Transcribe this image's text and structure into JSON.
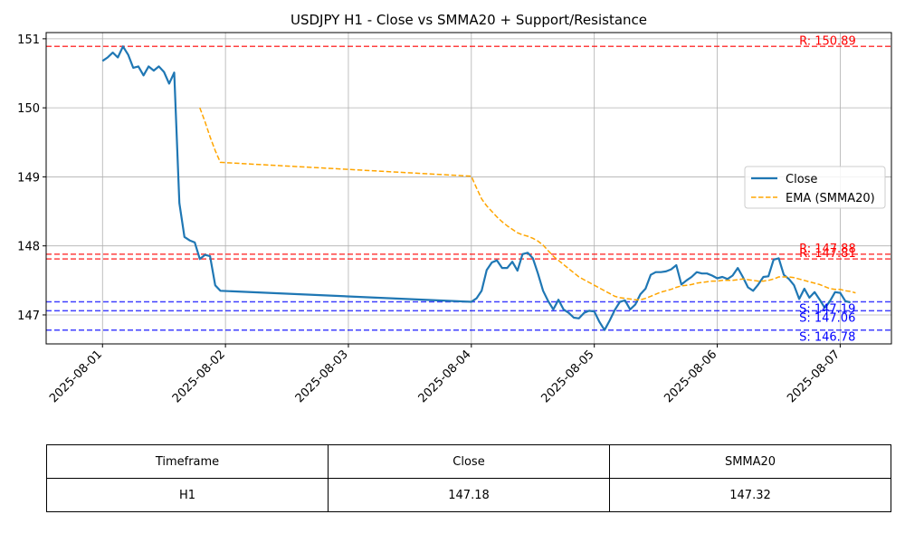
{
  "chart_data": {
    "type": "line",
    "title": "USDJPY H1 - Close vs SMMA20 + Support/Resistance",
    "xlabel": "",
    "ylabel": "",
    "x_ticks": [
      "2025-08-01",
      "2025-08-02",
      "2025-08-03",
      "2025-08-04",
      "2025-08-05",
      "2025-08-06",
      "2025-08-07"
    ],
    "y_ticks": [
      147,
      148,
      149,
      150,
      151
    ],
    "xlim": [
      "2025-07-31 13:00",
      "2025-08-07 10:00"
    ],
    "ylim": [
      146.58,
      151.09
    ],
    "grid": true,
    "legend_position": "center-right",
    "series": [
      {
        "name": "Close",
        "color": "#1f77b4",
        "style": "solid",
        "points": [
          [
            "2025-08-01 00:00",
            150.68
          ],
          [
            "2025-08-01 01:00",
            150.73
          ],
          [
            "2025-08-01 02:00",
            150.8
          ],
          [
            "2025-08-01 03:00",
            150.73
          ],
          [
            "2025-08-01 04:00",
            150.89
          ],
          [
            "2025-08-01 05:00",
            150.77
          ],
          [
            "2025-08-01 06:00",
            150.58
          ],
          [
            "2025-08-01 07:00",
            150.6
          ],
          [
            "2025-08-01 08:00",
            150.47
          ],
          [
            "2025-08-01 09:00",
            150.6
          ],
          [
            "2025-08-01 10:00",
            150.54
          ],
          [
            "2025-08-01 11:00",
            150.6
          ],
          [
            "2025-08-01 12:00",
            150.52
          ],
          [
            "2025-08-01 13:00",
            150.35
          ],
          [
            "2025-08-01 14:00",
            150.51
          ],
          [
            "2025-08-01 15:00",
            148.62
          ],
          [
            "2025-08-01 16:00",
            148.13
          ],
          [
            "2025-08-01 17:00",
            148.08
          ],
          [
            "2025-08-01 18:00",
            148.05
          ],
          [
            "2025-08-01 19:00",
            147.81
          ],
          [
            "2025-08-01 20:00",
            147.87
          ],
          [
            "2025-08-01 21:00",
            147.85
          ],
          [
            "2025-08-01 22:00",
            147.43
          ],
          [
            "2025-08-01 23:00",
            147.35
          ],
          [
            "2025-08-04 00:00",
            147.19
          ],
          [
            "2025-08-04 01:00",
            147.24
          ],
          [
            "2025-08-04 02:00",
            147.35
          ],
          [
            "2025-08-04 03:00",
            147.65
          ],
          [
            "2025-08-04 04:00",
            147.76
          ],
          [
            "2025-08-04 05:00",
            147.79
          ],
          [
            "2025-08-04 06:00",
            147.68
          ],
          [
            "2025-08-04 07:00",
            147.68
          ],
          [
            "2025-08-04 08:00",
            147.77
          ],
          [
            "2025-08-04 09:00",
            147.64
          ],
          [
            "2025-08-04 10:00",
            147.88
          ],
          [
            "2025-08-04 11:00",
            147.9
          ],
          [
            "2025-08-04 12:00",
            147.82
          ],
          [
            "2025-08-04 13:00",
            147.6
          ],
          [
            "2025-08-04 14:00",
            147.35
          ],
          [
            "2025-08-04 15:00",
            147.2
          ],
          [
            "2025-08-04 16:00",
            147.08
          ],
          [
            "2025-08-04 17:00",
            147.22
          ],
          [
            "2025-08-04 18:00",
            147.08
          ],
          [
            "2025-08-04 19:00",
            147.03
          ],
          [
            "2025-08-04 20:00",
            146.96
          ],
          [
            "2025-08-04 21:00",
            146.95
          ],
          [
            "2025-08-04 22:00",
            147.03
          ],
          [
            "2025-08-04 23:00",
            147.06
          ],
          [
            "2025-08-05 00:00",
            147.05
          ],
          [
            "2025-08-05 01:00",
            146.9
          ],
          [
            "2025-08-05 02:00",
            146.78
          ],
          [
            "2025-08-05 03:00",
            146.92
          ],
          [
            "2025-08-05 04:00",
            147.07
          ],
          [
            "2025-08-05 05:00",
            147.19
          ],
          [
            "2025-08-05 06:00",
            147.21
          ],
          [
            "2025-08-05 07:00",
            147.08
          ],
          [
            "2025-08-05 08:00",
            147.15
          ],
          [
            "2025-08-05 09:00",
            147.3
          ],
          [
            "2025-08-05 10:00",
            147.38
          ],
          [
            "2025-08-05 11:00",
            147.58
          ],
          [
            "2025-08-05 12:00",
            147.62
          ],
          [
            "2025-08-05 13:00",
            147.62
          ],
          [
            "2025-08-05 14:00",
            147.63
          ],
          [
            "2025-08-05 15:00",
            147.66
          ],
          [
            "2025-08-05 16:00",
            147.72
          ],
          [
            "2025-08-05 17:00",
            147.44
          ],
          [
            "2025-08-05 18:00",
            147.5
          ],
          [
            "2025-08-05 19:00",
            147.55
          ],
          [
            "2025-08-05 20:00",
            147.62
          ],
          [
            "2025-08-05 21:00",
            147.6
          ],
          [
            "2025-08-05 22:00",
            147.6
          ],
          [
            "2025-08-05 23:00",
            147.57
          ],
          [
            "2025-08-06 00:00",
            147.53
          ],
          [
            "2025-08-06 01:00",
            147.55
          ],
          [
            "2025-08-06 02:00",
            147.52
          ],
          [
            "2025-08-06 03:00",
            147.57
          ],
          [
            "2025-08-06 04:00",
            147.68
          ],
          [
            "2025-08-06 05:00",
            147.55
          ],
          [
            "2025-08-06 06:00",
            147.4
          ],
          [
            "2025-08-06 07:00",
            147.35
          ],
          [
            "2025-08-06 08:00",
            147.44
          ],
          [
            "2025-08-06 09:00",
            147.55
          ],
          [
            "2025-08-06 10:00",
            147.56
          ],
          [
            "2025-08-06 11:00",
            147.8
          ],
          [
            "2025-08-06 12:00",
            147.82
          ],
          [
            "2025-08-06 13:00",
            147.58
          ],
          [
            "2025-08-06 14:00",
            147.52
          ],
          [
            "2025-08-06 15:00",
            147.43
          ],
          [
            "2025-08-06 16:00",
            147.23
          ],
          [
            "2025-08-06 17:00",
            147.38
          ],
          [
            "2025-08-06 18:00",
            147.25
          ],
          [
            "2025-08-06 19:00",
            147.33
          ],
          [
            "2025-08-06 20:00",
            147.22
          ],
          [
            "2025-08-06 21:00",
            147.1
          ],
          [
            "2025-08-06 22:00",
            147.2
          ],
          [
            "2025-08-06 23:00",
            147.33
          ],
          [
            "2025-08-07 00:00",
            147.32
          ],
          [
            "2025-08-07 01:00",
            147.2
          ],
          [
            "2025-08-07 02:00",
            147.18
          ]
        ]
      },
      {
        "name": "EMA (SMMA20)",
        "color": "#ffa500",
        "style": "dashed",
        "points": [
          [
            "2025-08-01 19:00",
            150.0
          ],
          [
            "2025-08-01 20:00",
            149.8
          ],
          [
            "2025-08-01 21:00",
            149.58
          ],
          [
            "2025-08-01 22:00",
            149.38
          ],
          [
            "2025-08-01 23:00",
            149.21
          ],
          [
            "2025-08-04 00:00",
            149.01
          ],
          [
            "2025-08-04 01:00",
            148.84
          ],
          [
            "2025-08-04 02:00",
            148.68
          ],
          [
            "2025-08-04 03:00",
            148.58
          ],
          [
            "2025-08-04 04:00",
            148.5
          ],
          [
            "2025-08-04 05:00",
            148.42
          ],
          [
            "2025-08-04 06:00",
            148.35
          ],
          [
            "2025-08-04 07:00",
            148.29
          ],
          [
            "2025-08-04 08:00",
            148.24
          ],
          [
            "2025-08-04 09:00",
            148.19
          ],
          [
            "2025-08-04 10:00",
            148.16
          ],
          [
            "2025-08-04 11:00",
            148.14
          ],
          [
            "2025-08-04 12:00",
            148.11
          ],
          [
            "2025-08-04 13:00",
            148.07
          ],
          [
            "2025-08-04 14:00",
            148.01
          ],
          [
            "2025-08-04 15:00",
            147.93
          ],
          [
            "2025-08-04 16:00",
            147.85
          ],
          [
            "2025-08-04 17:00",
            147.79
          ],
          [
            "2025-08-04 18:00",
            147.73
          ],
          [
            "2025-08-04 19:00",
            147.67
          ],
          [
            "2025-08-04 20:00",
            147.61
          ],
          [
            "2025-08-04 21:00",
            147.55
          ],
          [
            "2025-08-04 22:00",
            147.51
          ],
          [
            "2025-08-04 23:00",
            147.47
          ],
          [
            "2025-08-05 00:00",
            147.43
          ],
          [
            "2025-08-05 01:00",
            147.39
          ],
          [
            "2025-08-05 02:00",
            147.35
          ],
          [
            "2025-08-05 03:00",
            147.31
          ],
          [
            "2025-08-05 04:00",
            147.27
          ],
          [
            "2025-08-05 05:00",
            147.25
          ],
          [
            "2025-08-05 06:00",
            147.24
          ],
          [
            "2025-08-05 07:00",
            147.23
          ],
          [
            "2025-08-05 08:00",
            147.22
          ],
          [
            "2025-08-05 09:00",
            147.22
          ],
          [
            "2025-08-05 10:00",
            147.24
          ],
          [
            "2025-08-05 11:00",
            147.27
          ],
          [
            "2025-08-05 12:00",
            147.3
          ],
          [
            "2025-08-05 13:00",
            147.33
          ],
          [
            "2025-08-05 14:00",
            147.35
          ],
          [
            "2025-08-05 15:00",
            147.37
          ],
          [
            "2025-08-05 16:00",
            147.4
          ],
          [
            "2025-08-05 17:00",
            147.42
          ],
          [
            "2025-08-05 18:00",
            147.43
          ],
          [
            "2025-08-05 19:00",
            147.44
          ],
          [
            "2025-08-05 20:00",
            147.46
          ],
          [
            "2025-08-05 21:00",
            147.47
          ],
          [
            "2025-08-05 22:00",
            147.48
          ],
          [
            "2025-08-05 23:00",
            147.49
          ],
          [
            "2025-08-06 00:00",
            147.49
          ],
          [
            "2025-08-06 01:00",
            147.5
          ],
          [
            "2025-08-06 02:00",
            147.5
          ],
          [
            "2025-08-06 03:00",
            147.5
          ],
          [
            "2025-08-06 04:00",
            147.51
          ],
          [
            "2025-08-06 05:00",
            147.52
          ],
          [
            "2025-08-06 06:00",
            147.51
          ],
          [
            "2025-08-06 07:00",
            147.5
          ],
          [
            "2025-08-06 08:00",
            147.49
          ],
          [
            "2025-08-06 09:00",
            147.49
          ],
          [
            "2025-08-06 10:00",
            147.5
          ],
          [
            "2025-08-06 11:00",
            147.52
          ],
          [
            "2025-08-06 12:00",
            147.55
          ],
          [
            "2025-08-06 13:00",
            147.55
          ],
          [
            "2025-08-06 14:00",
            147.55
          ],
          [
            "2025-08-06 15:00",
            147.54
          ],
          [
            "2025-08-06 16:00",
            147.52
          ],
          [
            "2025-08-06 17:00",
            147.5
          ],
          [
            "2025-08-06 18:00",
            147.48
          ],
          [
            "2025-08-06 19:00",
            147.46
          ],
          [
            "2025-08-06 20:00",
            147.44
          ],
          [
            "2025-08-06 21:00",
            147.41
          ],
          [
            "2025-08-06 22:00",
            147.38
          ],
          [
            "2025-08-06 23:00",
            147.37
          ],
          [
            "2025-08-07 00:00",
            147.37
          ],
          [
            "2025-08-07 01:00",
            147.35
          ],
          [
            "2025-08-07 02:00",
            147.34
          ],
          [
            "2025-08-07 03:00",
            147.32
          ]
        ]
      }
    ],
    "levels": [
      {
        "kind": "resistance",
        "label": "R: 150.89",
        "value": 150.89,
        "color": "#ff0000"
      },
      {
        "kind": "resistance",
        "label": "R: 147.88",
        "value": 147.88,
        "color": "#ff0000"
      },
      {
        "kind": "resistance",
        "label": "R: 147.81",
        "value": 147.81,
        "color": "#ff0000"
      },
      {
        "kind": "support",
        "label": "S: 147.19",
        "value": 147.19,
        "color": "#0000ff"
      },
      {
        "kind": "support",
        "label": "S: 147.06",
        "value": 147.06,
        "color": "#0000ff"
      },
      {
        "kind": "support",
        "label": "S: 146.78",
        "value": 146.78,
        "color": "#0000ff"
      }
    ]
  },
  "table": {
    "headers": [
      "Timeframe",
      "Close",
      "SMMA20"
    ],
    "rows": [
      [
        "H1",
        "147.18",
        "147.32"
      ]
    ]
  }
}
